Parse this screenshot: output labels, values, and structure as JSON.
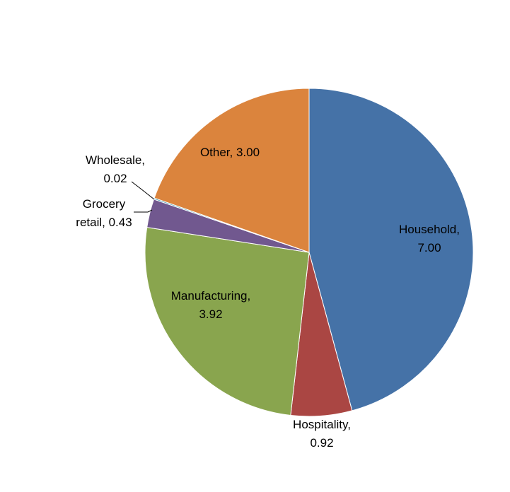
{
  "chart_data": {
    "type": "pie",
    "title": "",
    "slices": [
      {
        "name": "Household",
        "value": 7.0,
        "value_label": "7.00",
        "color": "#4572A7"
      },
      {
        "name": "Hospitality",
        "value": 0.92,
        "value_label": "0.92",
        "color": "#AA4643"
      },
      {
        "name": "Manufacturing",
        "value": 3.92,
        "value_label": "3.92",
        "color": "#89A54E"
      },
      {
        "name": "Grocery retail",
        "value": 0.43,
        "value_label": "0.43",
        "color": "#71588F"
      },
      {
        "name": "Wholesale",
        "value": 0.02,
        "value_label": "0.02",
        "color": "#4198AF"
      },
      {
        "name": "Other",
        "value": 3.0,
        "value_label": "3.00",
        "color": "#DB843D"
      }
    ],
    "legend": "none",
    "data_labels": "category name, value"
  }
}
